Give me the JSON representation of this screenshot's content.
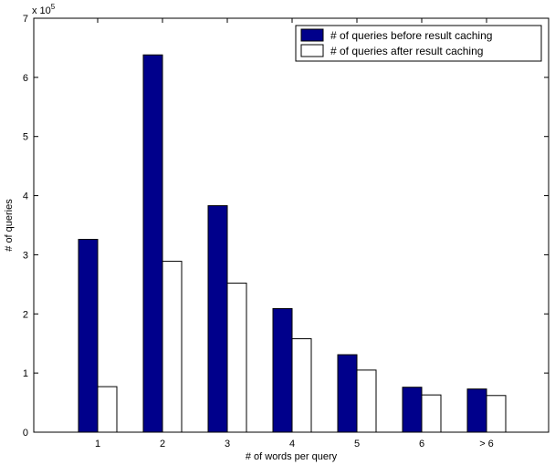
{
  "chart_data": {
    "type": "bar",
    "xlabel": "# of words per query",
    "ylabel": "# of queries",
    "y_multiplier_label": "x 10",
    "y_multiplier_exponent": "5",
    "categories": [
      "1",
      "2",
      "3",
      "4",
      "5",
      "6",
      "> 6"
    ],
    "ylim": [
      0,
      7
    ],
    "yticks": [
      "0",
      "1",
      "2",
      "3",
      "4",
      "5",
      "6",
      "7"
    ],
    "series": [
      {
        "name": "# of queries before result caching",
        "color": "#00008b",
        "values": [
          3.26,
          6.38,
          3.83,
          2.09,
          1.31,
          0.76,
          0.73
        ]
      },
      {
        "name": "# of queries after result caching",
        "color": "#ffffff",
        "values": [
          0.77,
          2.89,
          2.52,
          1.58,
          1.05,
          0.63,
          0.62
        ]
      }
    ],
    "legend_position": "top-right",
    "grid": false
  }
}
